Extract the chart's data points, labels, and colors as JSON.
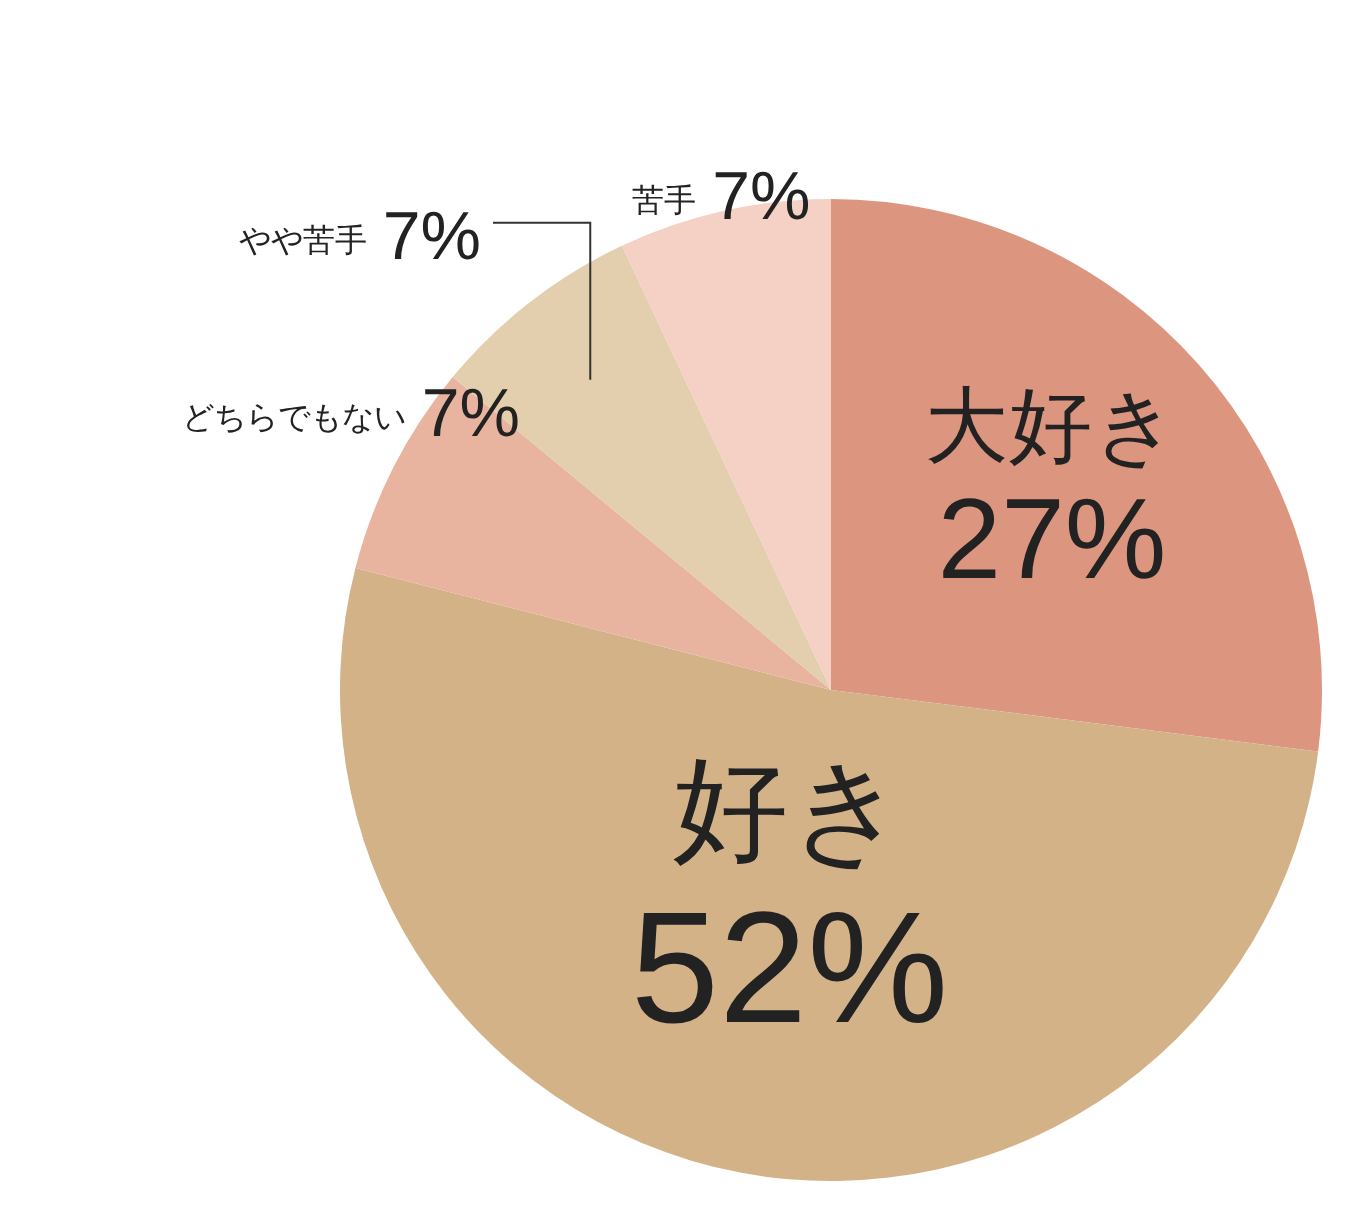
{
  "chart_data": {
    "type": "pie",
    "categories": [
      "大好き",
      "好き",
      "どちらでもない",
      "やや苦手",
      "苦手"
    ],
    "values": [
      27,
      52,
      7,
      7,
      7
    ],
    "colors": [
      "#dc9680",
      "#d4b287",
      "#e8b4a0",
      "#e3ceae",
      "#f5d0c4"
    ],
    "value_labels": [
      "27%",
      "52%",
      "7%",
      "7%",
      "7%"
    ]
  }
}
